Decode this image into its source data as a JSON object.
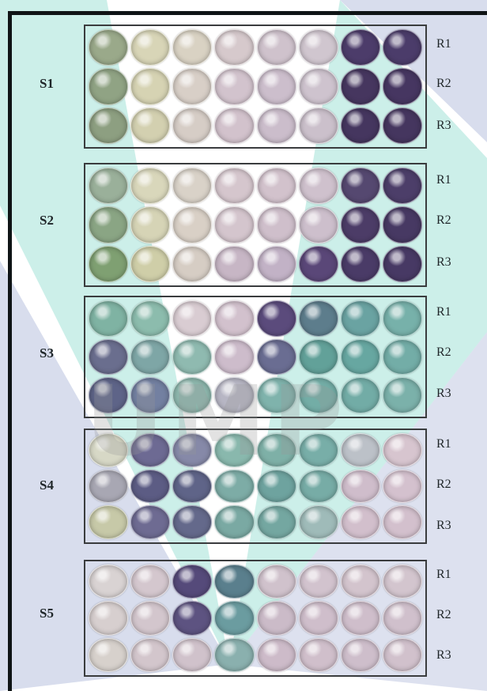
{
  "watermark": {
    "text": "UMP",
    "colors": {
      "teal": "#55c9b7",
      "lavender": "#a9b3d6",
      "grey": "#9a9a9a"
    }
  },
  "plates": [
    {
      "sample": "S1",
      "rows": [
        "R1",
        "R2",
        "R3"
      ],
      "well_colors": [
        [
          "#9aa98a",
          "#d8d5b7",
          "#d9d2c3",
          "#d6c9cc",
          "#cfc2cc",
          "#d0c6cf",
          "#4c3c6a",
          "#4b3c6a"
        ],
        [
          "#90a384",
          "#d6d3b3",
          "#d8cfc7",
          "#d2c3cd",
          "#ccbecc",
          "#cec3ce",
          "#46365f",
          "#463661"
        ],
        [
          "#8d9f81",
          "#d3d0b0",
          "#d6cdc6",
          "#d2c2cc",
          "#cbbdcb",
          "#cbc0cb",
          "#45365f",
          "#45365f"
        ]
      ]
    },
    {
      "sample": "S2",
      "rows": [
        "R1",
        "R2",
        "R3"
      ],
      "well_colors": [
        [
          "#9ab09a",
          "#d9d7bb",
          "#d9d2c8",
          "#d5c6cd",
          "#d2c2cc",
          "#cfc1cd",
          "#554870",
          "#4c3e69"
        ],
        [
          "#8aa584",
          "#d6d4b6",
          "#d9d0c6",
          "#d4c5cd",
          "#cfbfcb",
          "#cdbfcc",
          "#4c3c67",
          "#473963"
        ],
        [
          "#7fa072",
          "#cfcea8",
          "#d6cdc4",
          "#c7b6c5",
          "#c2b2c6",
          "#5a4778",
          "#4a3b67",
          "#473964"
        ]
      ]
    },
    {
      "sample": "S3",
      "rows": [
        "R1",
        "R2",
        "R3"
      ],
      "well_colors": [
        [
          "#7fb3a3",
          "#8cbcad",
          "#d9ccd2",
          "#d2c1cd",
          "#5b4b7c",
          "#5d7d8c",
          "#6aa3a2",
          "#77b1aa"
        ],
        [
          "#6a6e8e",
          "#7ea6a6",
          "#8fbab0",
          "#cdbccb",
          "#6a6d92",
          "#62a199",
          "#67a7a1",
          "#73ada7"
        ],
        [
          "#5e6488",
          "#7380a1",
          "#8db7ad",
          "#b7b6c4",
          "#7fb3ac",
          "#73ada6",
          "#72aca6",
          "#7bb1aa"
        ]
      ]
    },
    {
      "sample": "S4",
      "rows": [
        "R1",
        "R2",
        "R3"
      ],
      "well_colors": [
        [
          "#d7d8c6",
          "#6d6a93",
          "#8689a8",
          "#89b8ad",
          "#7eb0a7",
          "#78aea8",
          "#bcc1c8",
          "#d7c5cf"
        ],
        [
          "#a8a7b3",
          "#5c5c84",
          "#5f6488",
          "#7daca6",
          "#6ea39f",
          "#77aca6",
          "#cfbdcb",
          "#d4c1ce"
        ],
        [
          "#c7c9a8",
          "#6e6b92",
          "#64698b",
          "#7aa9a3",
          "#74a7a1",
          "#9fbbb9",
          "#d2bfcc",
          "#d3c0cd"
        ]
      ]
    },
    {
      "sample": "S5",
      "rows": [
        "R1",
        "R2",
        "R3"
      ],
      "well_colors": [
        [
          "#d9d3d3",
          "#d4c7ce",
          "#554a7a",
          "#5a7f8d",
          "#d0c2cc",
          "#d2c3ce",
          "#d3c4cd",
          "#d3c5ce"
        ],
        [
          "#d7cfcf",
          "#d3c6cd",
          "#5d5381",
          "#6b9ca0",
          "#cbbbc8",
          "#cfbecb",
          "#cfbecb",
          "#d0c0cc"
        ],
        [
          "#d7d1cc",
          "#d3c6cc",
          "#d0c2cb",
          "#8ab0ae",
          "#cdbbc9",
          "#d0bfcb",
          "#cebecb",
          "#d1c1cc"
        ]
      ]
    }
  ]
}
